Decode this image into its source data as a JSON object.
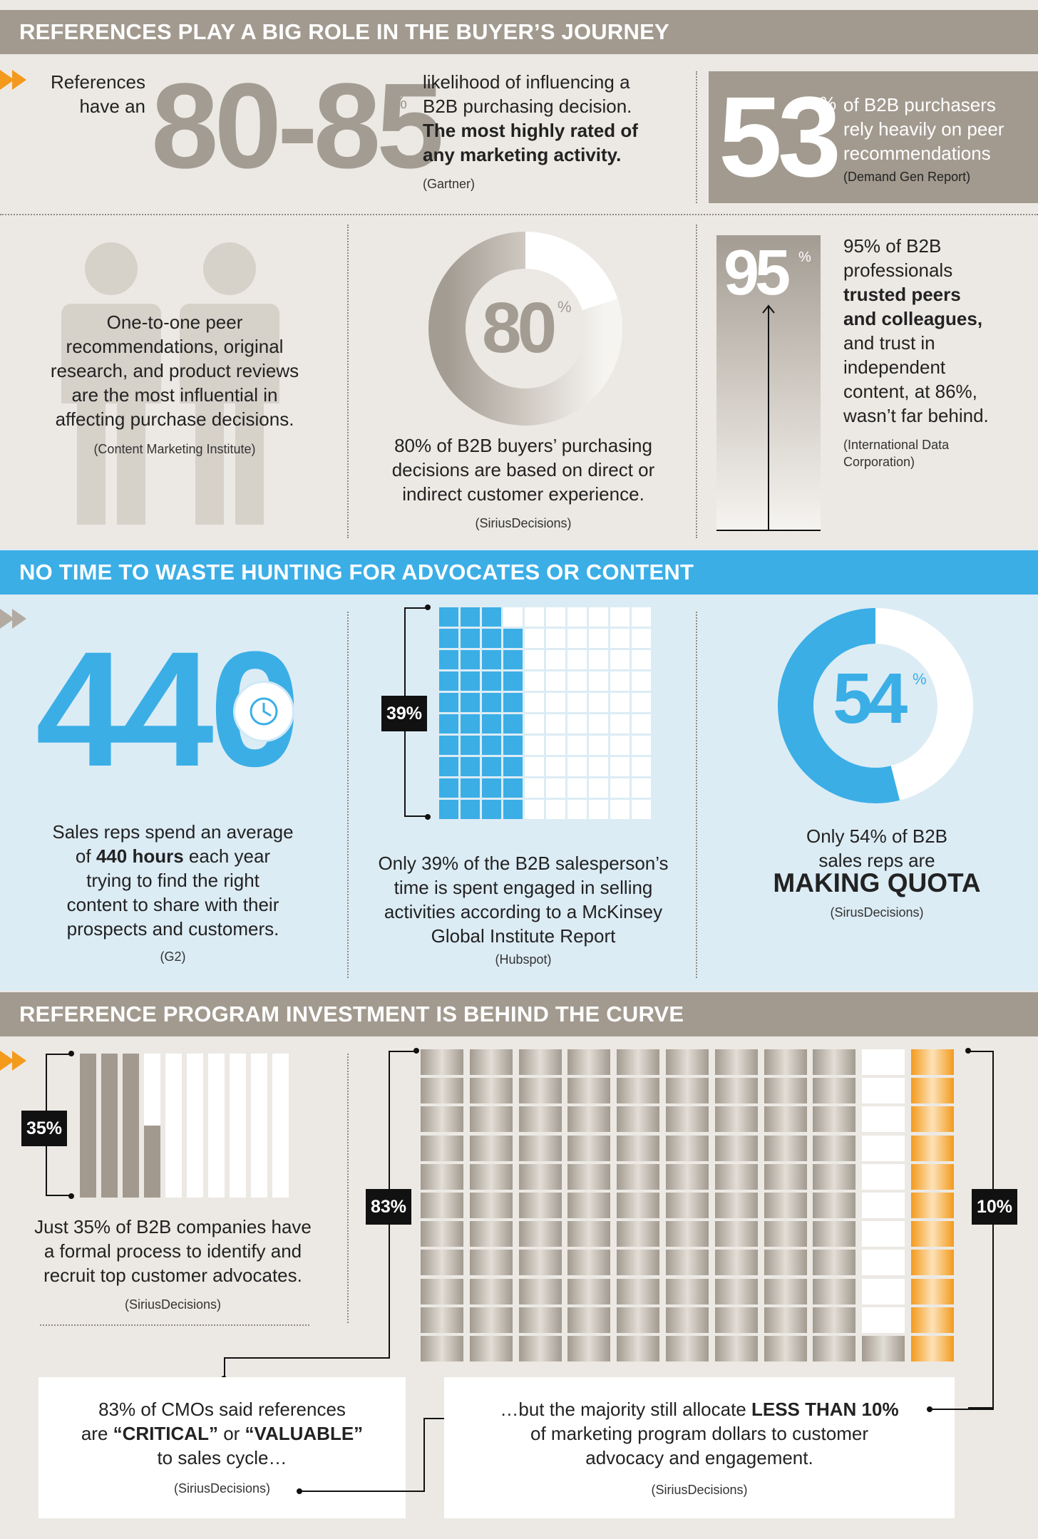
{
  "section1": {
    "title": "REFERENCES PLAY A BIG ROLE IN THE BUYER’S JOURNEY",
    "stat1": {
      "pre": "References have an",
      "number": "80-85",
      "percent": "%",
      "text_line1": "likelihood of influencing a",
      "text_line2": "B2B purchasing decision.",
      "bold_line1": "The most highly rated of",
      "bold_line2": "any marketing activity.",
      "source": "(Gartner)"
    },
    "stat2": {
      "number": "53",
      "percent": "%",
      "line1": "of B2B purchasers",
      "line2": "rely heavily on peer",
      "line3": "recommendations",
      "source": "(Demand Gen Report)"
    },
    "stat3": {
      "line1": "One-to-one peer",
      "line2": "recommendations, original",
      "line3": "research, and product reviews",
      "line4": "are the most influential in",
      "line5": "affecting purchase decisions.",
      "source": "(Content Marketing Institute)"
    },
    "stat4": {
      "number": "80",
      "percent": "%",
      "value": 80,
      "line1": "80% of B2B buyers’ purchasing",
      "line2": "decisions are based on direct or",
      "line3": "indirect customer experience.",
      "source": "(SiriusDecisions)"
    },
    "stat5": {
      "number": "95",
      "percent": "%",
      "line1": "95% of B2B",
      "line2": "professionals",
      "bold1": "trusted peers",
      "bold2": "and colleagues,",
      "line3": "and trust in",
      "line4": "independent",
      "line5": "content, at 86%,",
      "line6": "wasn’t far behind.",
      "source1": "(International Data",
      "source2": "Corporation)"
    }
  },
  "section2": {
    "title": "NO TIME TO WASTE HUNTING FOR ADVOCATES OR CONTENT",
    "stat1": {
      "number": "440",
      "line1": "Sales reps spend an average",
      "line2_pre": "of ",
      "line2_bold": "440 hours",
      "line2_post": " each year",
      "line3": "trying to find the right",
      "line4": "content to share with their",
      "line5": "prospects and customers.",
      "source": "(G2)",
      "icon": "clock-icon"
    },
    "stat2": {
      "label": "39%",
      "value": 39,
      "line1": "Only 39% of the B2B salesperson’s",
      "line2": "time is spent engaged in selling",
      "line3": "activities according to a McKinsey",
      "line4": "Global Institute Report",
      "source": "(Hubspot)"
    },
    "stat3": {
      "number": "54",
      "percent": "%",
      "value": 54,
      "line1": "Only 54% of B2B",
      "line2": "sales reps are",
      "bold": "MAKING QUOTA",
      "source": "(SirusDecisions)"
    }
  },
  "section3": {
    "title": "REFERENCE PROGRAM INVESTMENT IS BEHIND THE CURVE",
    "stat1": {
      "label": "35%",
      "value": 35,
      "line1": "Just 35% of B2B companies have",
      "line2": "a formal process to identify and",
      "line3": "recruit top customer advocates.",
      "source": "(SiriusDecisions)"
    },
    "stat2": {
      "label_left": "83%",
      "label_right": "10%",
      "value_left": 83,
      "value_right": 10
    },
    "box1": {
      "line1": "83% of CMOs said references",
      "line2_pre": "are ",
      "line2_bold1": "“CRITICAL”",
      "line2_mid": " or ",
      "line2_bold2": "“VALUABLE”",
      "line3": "to sales cycle…",
      "source": "(SiriusDecisions)"
    },
    "box2": {
      "line1_pre": "…but the majority still allocate ",
      "line1_bold": "LESS THAN 10%",
      "line2": "of marketing program dollars to customer",
      "line3": "advocacy and engagement.",
      "source": "(SiriusDecisions)"
    }
  },
  "colors": {
    "gray_band": "#a29a8f",
    "blue_band": "#3baee6",
    "accent_orange": "#f39a1d",
    "stat_blue": "#3baee6",
    "light_blue_bg": "#dcecf5"
  }
}
